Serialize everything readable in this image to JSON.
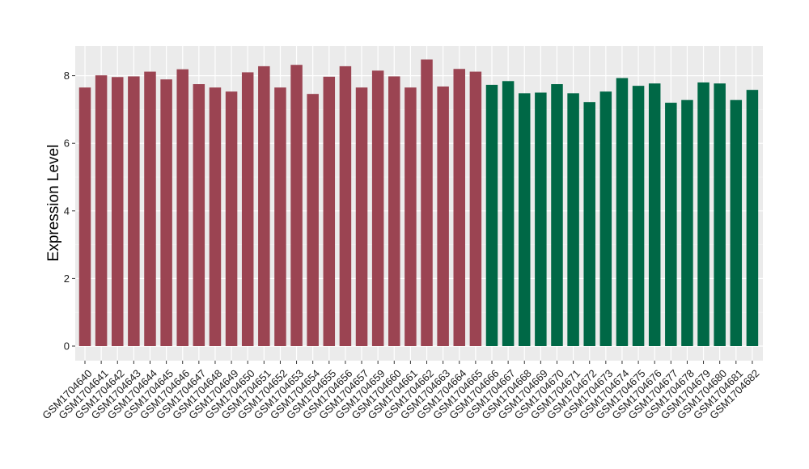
{
  "chart_data": {
    "type": "bar",
    "title": "",
    "xlabel": "",
    "ylabel": "Expression Level",
    "ylim": [
      0,
      8.8
    ],
    "yticks": [
      0,
      2,
      4,
      6,
      8
    ],
    "grid": true,
    "background": "#ebebeb",
    "categories": [
      "GSM1704640",
      "GSM1704641",
      "GSM1704642",
      "GSM1704643",
      "GSM1704644",
      "GSM1704645",
      "GSM1704646",
      "GSM1704647",
      "GSM1704648",
      "GSM1704649",
      "GSM1704650",
      "GSM1704651",
      "GSM1704652",
      "GSM1704653",
      "GSM1704654",
      "GSM1704655",
      "GSM1704656",
      "GSM1704657",
      "GSM1704659",
      "GSM1704660",
      "GSM1704661",
      "GSM1704662",
      "GSM1704663",
      "GSM1704664",
      "GSM1704665",
      "GSM1704666",
      "GSM1704667",
      "GSM1704668",
      "GSM1704669",
      "GSM1704670",
      "GSM1704671",
      "GSM1704672",
      "GSM1704673",
      "GSM1704674",
      "GSM1704675",
      "GSM1704676",
      "GSM1704677",
      "GSM1704678",
      "GSM1704679",
      "GSM1704680",
      "GSM1704681",
      "GSM1704682"
    ],
    "values": [
      7.65,
      8.01,
      7.96,
      7.98,
      8.12,
      7.89,
      8.19,
      7.75,
      7.65,
      7.53,
      8.1,
      8.28,
      7.65,
      8.32,
      7.46,
      7.97,
      8.28,
      7.65,
      8.15,
      7.98,
      7.65,
      8.48,
      7.68,
      8.2,
      8.12,
      7.73,
      7.84,
      7.48,
      7.5,
      7.75,
      7.48,
      7.22,
      7.53,
      7.93,
      7.7,
      7.77,
      7.2,
      7.28,
      7.8,
      7.77,
      7.28,
      7.58
    ],
    "bar_colors": [
      "#9b4452",
      "#9b4452",
      "#9b4452",
      "#9b4452",
      "#9b4452",
      "#9b4452",
      "#9b4452",
      "#9b4452",
      "#9b4452",
      "#9b4452",
      "#9b4452",
      "#9b4452",
      "#9b4452",
      "#9b4452",
      "#9b4452",
      "#9b4452",
      "#9b4452",
      "#9b4452",
      "#9b4452",
      "#9b4452",
      "#9b4452",
      "#9b4452",
      "#9b4452",
      "#9b4452",
      "#9b4452",
      "#006846",
      "#006846",
      "#006846",
      "#006846",
      "#006846",
      "#006846",
      "#006846",
      "#006846",
      "#006846",
      "#006846",
      "#006846",
      "#006846",
      "#006846",
      "#006846",
      "#006846",
      "#006846",
      "#006846"
    ]
  }
}
